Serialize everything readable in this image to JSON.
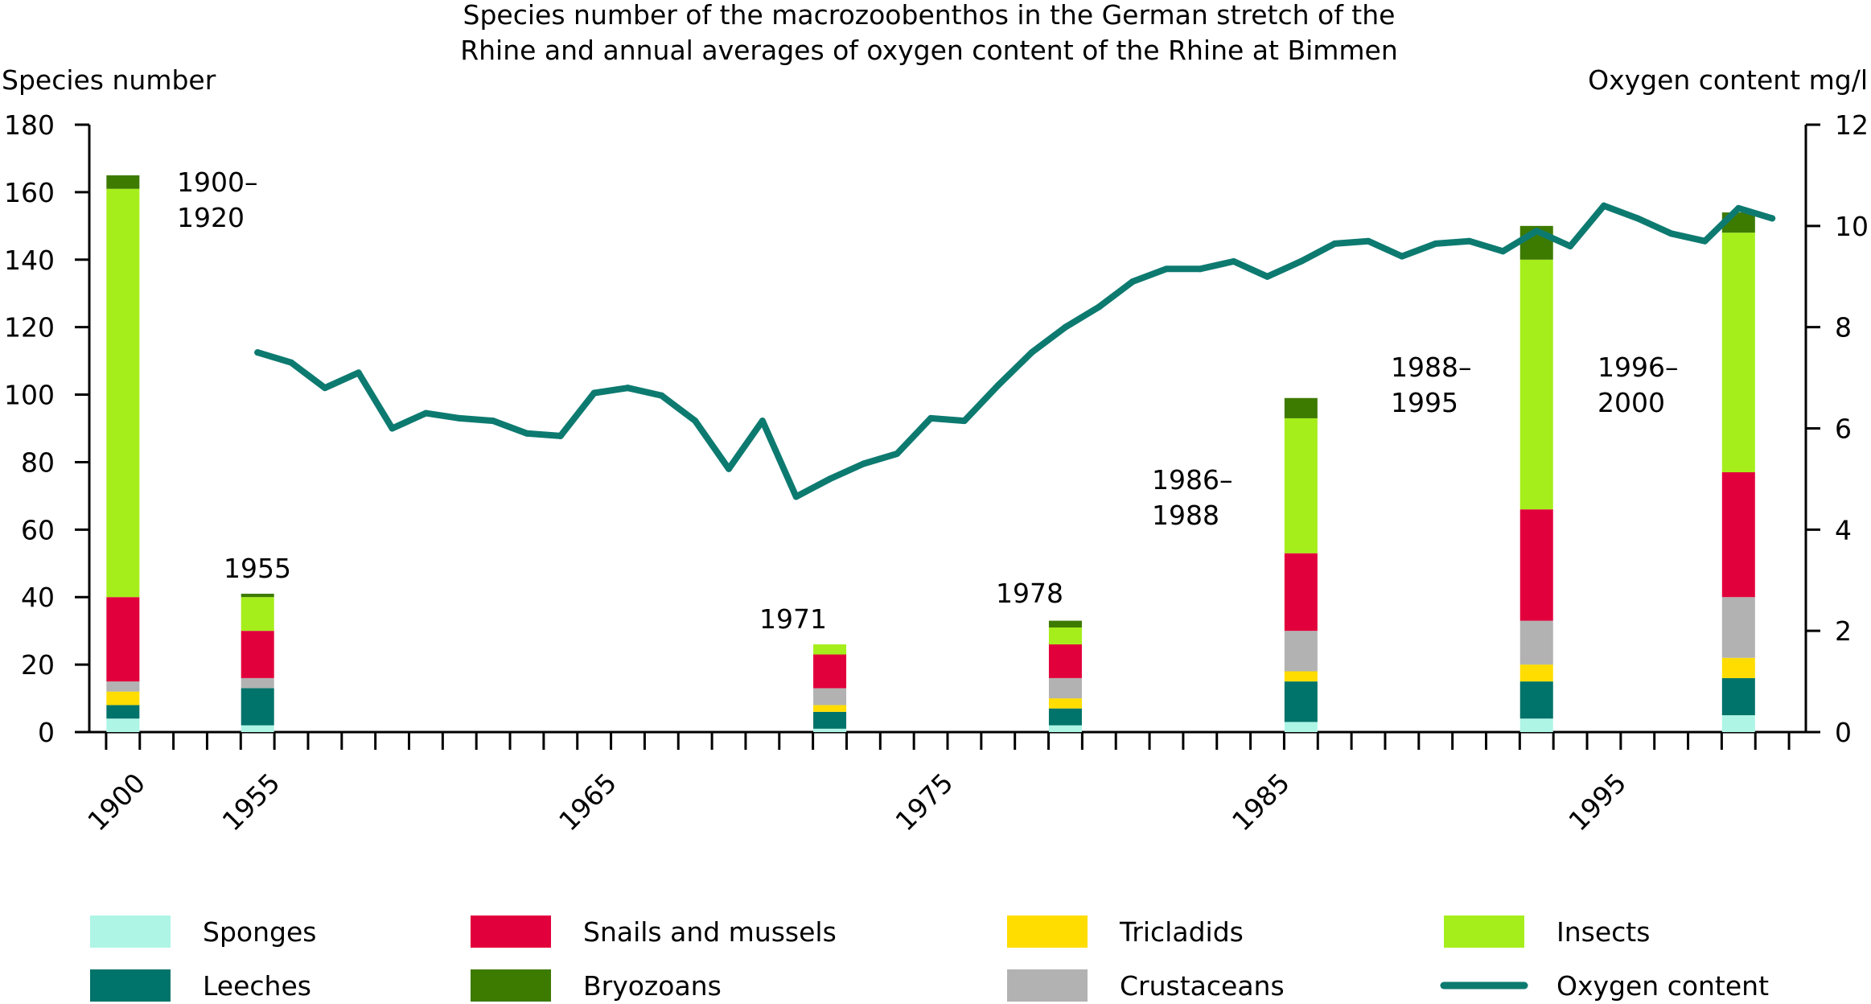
{
  "chart_data": {
    "type": "bar+line",
    "title_lines": [
      "Species number of the macrozoobenthos in the German stretch of the",
      "Rhine and annual averages of oxygen content of the Rhine at Bimmen"
    ],
    "ylabel_left": "Species number",
    "ylabel_right": "Oxygen content mg/l",
    "ylim_left": [
      0,
      180
    ],
    "ylim_right": [
      0,
      12
    ],
    "yticks_left": [
      "0",
      "20",
      "40",
      "60",
      "80",
      "100",
      "120",
      "140",
      "160",
      "180"
    ],
    "yticks_right": [
      "0",
      "2",
      "4",
      "6",
      "8",
      "10",
      "12"
    ],
    "x_range": [
      1949,
      2000
    ],
    "x_tick_labels": [
      {
        "label": "1900",
        "x": 1950
      },
      {
        "label": "1955",
        "x": 1954
      },
      {
        "label": "1965",
        "x": 1964
      },
      {
        "label": "1975",
        "x": 1974
      },
      {
        "label": "1985",
        "x": 1984
      },
      {
        "label": "1995",
        "x": 1994
      }
    ],
    "series_names": [
      "Sponges",
      "Leeches",
      "Tricladids",
      "Crustaceans",
      "Snails and mussels",
      "Insects",
      "Bryozoans"
    ],
    "series_colors": [
      "#aef5e6",
      "#00736a",
      "#ffdd00",
      "#b2b2b2",
      "#e2003c",
      "#a5ee1b",
      "#3d7a00"
    ],
    "bars": [
      {
        "label": "1900–1920",
        "label_lines": [
          "1900–",
          "1920"
        ],
        "x": 1950,
        "values": [
          4,
          4,
          4,
          3,
          25,
          121,
          4
        ]
      },
      {
        "label": "1955",
        "label_lines": [
          "1955"
        ],
        "x": 1954,
        "values": [
          2,
          11,
          0,
          3,
          14,
          10,
          1
        ]
      },
      {
        "label": "1971",
        "label_lines": [
          "1971"
        ],
        "x": 1971,
        "values": [
          1,
          5,
          2,
          5,
          10,
          3,
          0
        ]
      },
      {
        "label": "1978",
        "label_lines": [
          "1978"
        ],
        "x": 1978,
        "values": [
          2,
          5,
          3,
          6,
          10,
          5,
          2
        ]
      },
      {
        "label": "1986–1988",
        "label_lines": [
          "1986–",
          "1988"
        ],
        "x": 1985,
        "values": [
          3,
          12,
          3,
          12,
          23,
          40,
          6
        ]
      },
      {
        "label": "1988–1995",
        "label_lines": [
          "1988–",
          "1995"
        ],
        "x": 1992,
        "values": [
          4,
          11,
          5,
          13,
          33,
          74,
          10
        ]
      },
      {
        "label": "1996–2000",
        "label_lines": [
          "1996–",
          "2000"
        ],
        "x": 1998,
        "values": [
          5,
          11,
          6,
          18,
          37,
          71,
          6
        ]
      }
    ],
    "oxygen": {
      "name": "Oxygen content",
      "color": "#0d7a70",
      "x": [
        1954,
        1955,
        1956,
        1957,
        1958,
        1959,
        1960,
        1961,
        1962,
        1963,
        1964,
        1965,
        1966,
        1967,
        1968,
        1969,
        1970,
        1971,
        1972,
        1973,
        1974,
        1975,
        1976,
        1977,
        1978,
        1979,
        1980,
        1981,
        1982,
        1983,
        1984,
        1985,
        1986,
        1987,
        1988,
        1989,
        1990,
        1991,
        1992,
        1993,
        1994,
        1995,
        1996,
        1997,
        1998,
        1999
      ],
      "y": [
        7.5,
        7.3,
        6.8,
        7.1,
        6.0,
        6.3,
        6.2,
        6.15,
        5.9,
        5.85,
        6.7,
        6.8,
        6.65,
        6.15,
        5.2,
        6.15,
        4.65,
        5.0,
        5.3,
        5.5,
        6.2,
        6.15,
        6.85,
        7.5,
        8.0,
        8.4,
        8.9,
        9.15,
        9.15,
        9.3,
        9.0,
        9.3,
        9.65,
        9.7,
        9.4,
        9.65,
        9.7,
        9.5,
        9.9,
        9.6,
        10.4,
        10.15,
        9.85,
        9.7,
        10.35,
        10.15
      ]
    },
    "legend": [
      {
        "label": "Sponges",
        "type": "box",
        "color": "#aef5e6"
      },
      {
        "label": "Snails and mussels",
        "type": "box",
        "color": "#e2003c"
      },
      {
        "label": "Tricladids",
        "type": "box",
        "color": "#ffdd00"
      },
      {
        "label": "Insects",
        "type": "box",
        "color": "#a5ee1b"
      },
      {
        "label": "Leeches",
        "type": "box",
        "color": "#00736a"
      },
      {
        "label": "Bryozoans",
        "type": "box",
        "color": "#3d7a00"
      },
      {
        "label": "Crustaceans",
        "type": "box",
        "color": "#b2b2b2"
      },
      {
        "label": "Oxygen content",
        "type": "line",
        "color": "#0d7a70"
      }
    ]
  }
}
